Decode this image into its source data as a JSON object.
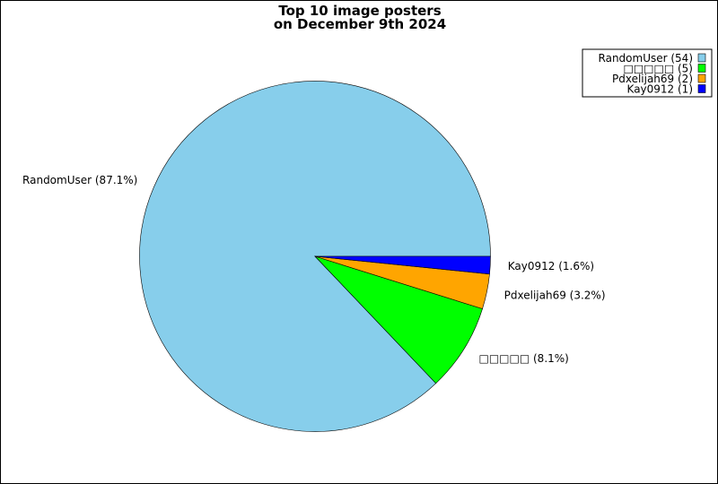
{
  "chart_data": {
    "type": "pie",
    "title": "Top 10 image posters\non December 9th 2024",
    "title_lines": [
      "Top 10 image posters",
      "on December 9th 2024"
    ],
    "slices": [
      {
        "label": "RandomUser",
        "value": 54,
        "percent_label": "RandomUser (87.1%)",
        "legend_label": "RandomUser (54)",
        "color": "#87ceeb"
      },
      {
        "label": "□□□□□",
        "value": 5,
        "percent_label": "□□□□□ (8.1%)",
        "legend_label": "□□□□□ (5)",
        "color": "#00ff00"
      },
      {
        "label": "Pdxelijah69",
        "value": 2,
        "percent_label": "Pdxelijah69 (3.2%)",
        "legend_label": "Pdxelijah69 (2)",
        "color": "#ffa500"
      },
      {
        "label": "Kay0912",
        "value": 1,
        "percent_label": "Kay0912 (1.6%)",
        "legend_label": "Kay0912 (1)",
        "color": "#0000ff"
      }
    ],
    "start_angle_deg": 0,
    "direction": "counterclockwise",
    "legend_placement": "top-right"
  }
}
